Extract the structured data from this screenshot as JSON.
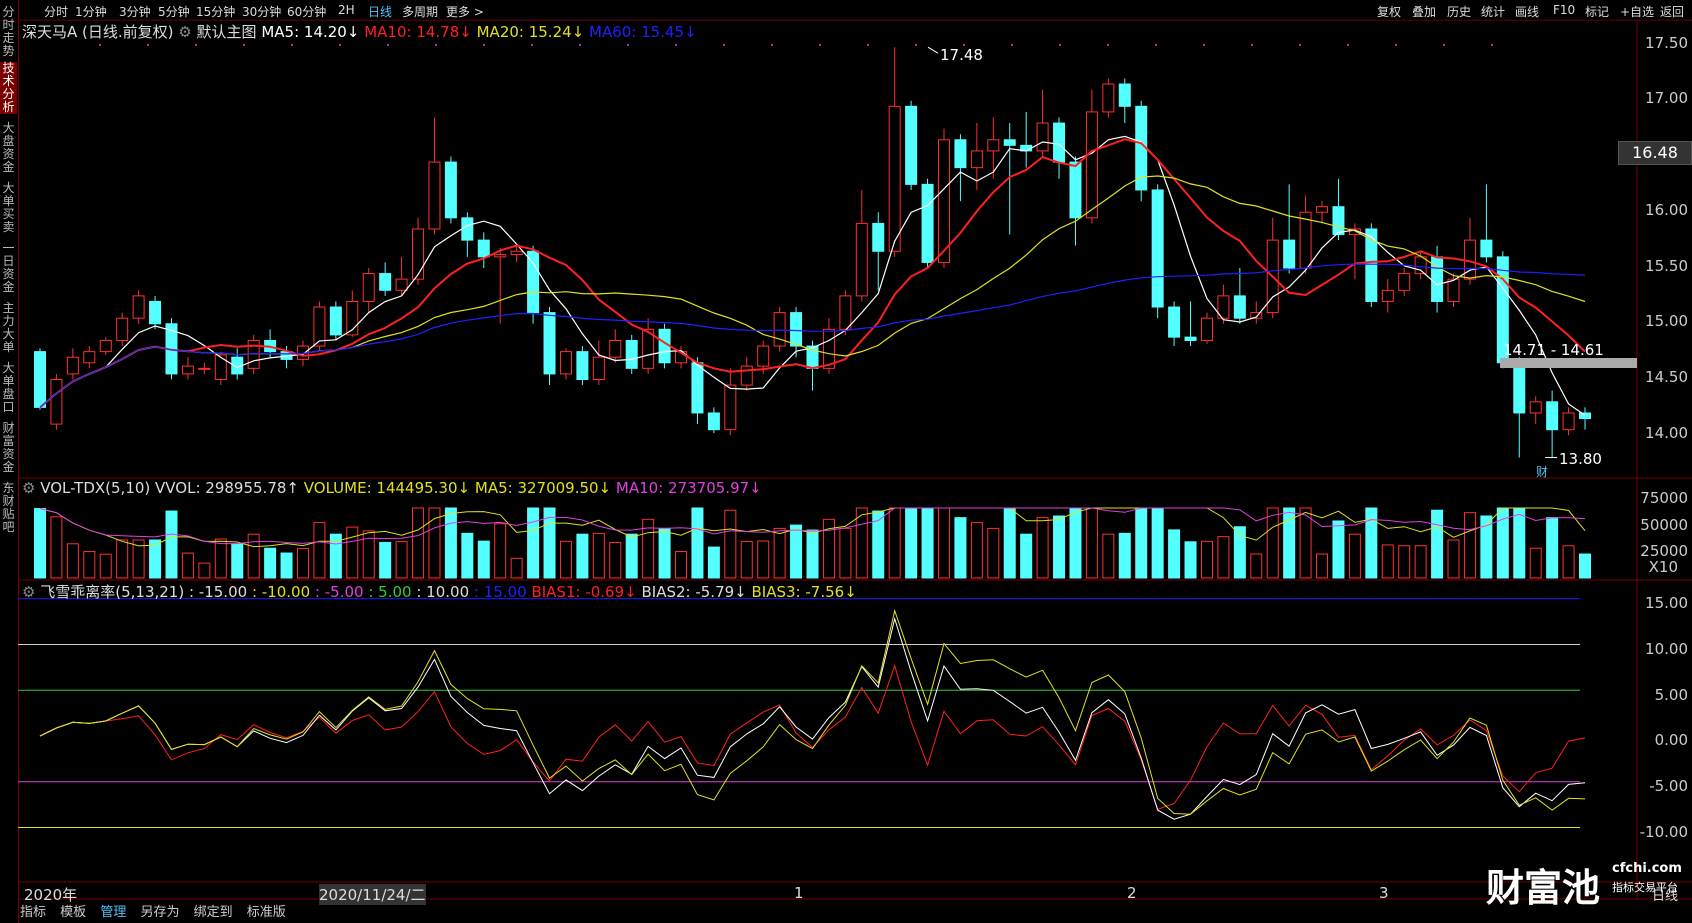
{
  "top_periods": [
    "分时",
    "1分钟",
    "3分钟",
    "5分钟",
    "15分钟",
    "30分钟",
    "60分钟",
    "2H",
    "日线",
    "多周期",
    "更多 >"
  ],
  "top_tools": [
    "复权",
    "叠加",
    "历史",
    "统计",
    "画线",
    "F10",
    "标记",
    "+自选",
    "返回"
  ],
  "side_tabs": [
    "分时走势",
    "技术分析",
    "大盘资金",
    "大单买卖",
    "一日资金",
    "主力大单",
    "大单盘口",
    "财富资金",
    "东财贴吧"
  ],
  "legend_main": {
    "name": "深天马A (日线.前复权)",
    "template": "默认主图",
    "ma5": "MA5: 14.20↓",
    "ma10": "MA10: 14.78↓",
    "ma20": "MA20: 15.24↓",
    "ma60": "MA60: 15.45↓"
  },
  "legend_vol": {
    "name": "VOL-TDX(5,10)",
    "vvol": "VVOL: 298955.78↑",
    "volume": "VOLUME: 144495.30↓",
    "ma5": "MA5: 327009.50↓",
    "ma10": "MA10: 273705.97↓"
  },
  "legend_bias": {
    "name": "飞雪乖离率(5,13,21)",
    "p1": ": -15.00",
    "p2": ": -10.00",
    "p3": ": -5.00",
    "p4": ": 5.00",
    "p5": ": 10.00",
    "p6": ": 15.00",
    "bias1": "BIAS1: -0.69↓",
    "bias2": "BIAS2: -5.79↓",
    "bias3": "BIAS3: -7.56↓"
  },
  "price_axis": [
    "17.50",
    "17.00",
    "16.48",
    "16.00",
    "15.50",
    "15.00",
    "14.50",
    "14.00"
  ],
  "current_price": "16.48",
  "vol_axis": [
    "75000",
    "50000",
    "25000",
    "X10"
  ],
  "bias_axis": [
    "15.00",
    "10.00",
    "5.00",
    "0.00",
    "-5.00",
    "-10.00"
  ],
  "annotations": {
    "high": "17.48",
    "low": "13.80",
    "range": "14.71 - 14.61",
    "cai": "财"
  },
  "x_labels": [
    "2020年",
    "2020/11/24/二",
    "1",
    "2",
    "3"
  ],
  "bottom_tabs": [
    "指标",
    "模板",
    "管理",
    "另存为",
    "绑定到",
    "标准版"
  ],
  "bottom_right": "日线",
  "logo": {
    "brand": "财富池",
    "site": "cfchi.com",
    "slogan": "指标交易平台"
  },
  "colors": {
    "up": "#ff3030",
    "down": "#54ffff",
    "ma5": "#ffffff",
    "ma10": "#ff2020",
    "ma20": "#e0e020",
    "ma60": "#2020ff"
  },
  "chart_data": {
    "type": "candlestick",
    "candles": [
      [
        14.75,
        14.25,
        14.78,
        14.23
      ],
      [
        14.1,
        14.5,
        14.55,
        14.05
      ],
      [
        14.55,
        14.7,
        14.78,
        14.5
      ],
      [
        14.65,
        14.75,
        14.8,
        14.6
      ],
      [
        14.75,
        14.85,
        14.88,
        14.72
      ],
      [
        14.85,
        15.05,
        15.1,
        14.8
      ],
      [
        15.05,
        15.25,
        15.3,
        15.0
      ],
      [
        15.2,
        15.0,
        15.25,
        14.95
      ],
      [
        15.0,
        14.55,
        15.05,
        14.5
      ],
      [
        14.55,
        14.62,
        14.7,
        14.5
      ],
      [
        14.6,
        14.6,
        14.65,
        14.55
      ],
      [
        14.5,
        14.72,
        14.75,
        14.45
      ],
      [
        14.7,
        14.55,
        14.78,
        14.5
      ],
      [
        14.6,
        14.85,
        14.9,
        14.55
      ],
      [
        14.85,
        14.75,
        14.95,
        14.7
      ],
      [
        14.75,
        14.68,
        14.8,
        14.6
      ],
      [
        14.68,
        14.8,
        14.85,
        14.62
      ],
      [
        14.8,
        15.15,
        15.2,
        14.75
      ],
      [
        15.15,
        14.9,
        15.2,
        14.85
      ],
      [
        14.9,
        15.2,
        15.3,
        14.88
      ],
      [
        15.2,
        15.45,
        15.5,
        15.1
      ],
      [
        15.45,
        15.3,
        15.55,
        15.25
      ],
      [
        15.3,
        15.4,
        15.6,
        15.25
      ],
      [
        15.4,
        15.85,
        15.95,
        15.35
      ],
      [
        15.85,
        16.45,
        16.85,
        15.8
      ],
      [
        16.45,
        15.95,
        16.5,
        15.9
      ],
      [
        15.95,
        15.75,
        16.0,
        15.6
      ],
      [
        15.75,
        15.6,
        15.82,
        15.5
      ],
      [
        15.6,
        15.62,
        15.68,
        15.0
      ],
      [
        15.62,
        15.65,
        15.7,
        15.55
      ],
      [
        15.65,
        15.1,
        15.7,
        15.0
      ],
      [
        15.1,
        14.55,
        15.15,
        14.45
      ],
      [
        14.55,
        14.75,
        14.78,
        14.5
      ],
      [
        14.75,
        14.5,
        14.8,
        14.45
      ],
      [
        14.5,
        14.7,
        14.85,
        14.45
      ],
      [
        14.7,
        14.85,
        14.95,
        14.65
      ],
      [
        14.85,
        14.6,
        14.9,
        14.55
      ],
      [
        14.6,
        14.95,
        15.05,
        14.55
      ],
      [
        14.95,
        14.65,
        15.0,
        14.6
      ],
      [
        14.65,
        14.75,
        14.8,
        14.6
      ],
      [
        14.65,
        14.2,
        14.7,
        14.1
      ],
      [
        14.2,
        14.05,
        14.25,
        14.02
      ],
      [
        14.05,
        14.45,
        14.6,
        14.0
      ],
      [
        14.45,
        14.62,
        14.7,
        14.4
      ],
      [
        14.62,
        14.8,
        14.85,
        14.55
      ],
      [
        14.8,
        15.1,
        15.15,
        14.75
      ],
      [
        15.1,
        14.8,
        15.15,
        14.7
      ],
      [
        14.8,
        14.6,
        14.85,
        14.4
      ],
      [
        14.6,
        14.95,
        15.05,
        14.55
      ],
      [
        14.95,
        15.25,
        15.3,
        14.9
      ],
      [
        15.25,
        15.9,
        16.2,
        15.2
      ],
      [
        15.9,
        15.65,
        16.0,
        15.3
      ],
      [
        15.65,
        16.95,
        17.48,
        15.6
      ],
      [
        16.95,
        16.25,
        17.0,
        16.2
      ],
      [
        16.25,
        15.55,
        16.3,
        15.5
      ],
      [
        15.55,
        16.65,
        16.75,
        15.5
      ],
      [
        16.65,
        16.4,
        16.7,
        16.1
      ],
      [
        16.4,
        16.55,
        16.8,
        16.2
      ],
      [
        16.55,
        16.65,
        16.85,
        16.3
      ],
      [
        16.65,
        16.6,
        16.8,
        15.8
      ],
      [
        16.6,
        16.55,
        16.9,
        16.4
      ],
      [
        16.55,
        16.8,
        17.1,
        16.5
      ],
      [
        16.8,
        16.45,
        16.85,
        16.3
      ],
      [
        16.45,
        15.95,
        16.5,
        15.7
      ],
      [
        15.95,
        16.9,
        17.1,
        15.9
      ],
      [
        16.9,
        17.15,
        17.2,
        16.85
      ],
      [
        17.15,
        16.95,
        17.2,
        16.8
      ],
      [
        16.95,
        16.2,
        17.0,
        16.1
      ],
      [
        16.2,
        15.15,
        16.25,
        15.05
      ],
      [
        15.15,
        14.88,
        15.2,
        14.8
      ],
      [
        14.88,
        14.85,
        15.2,
        14.8
      ],
      [
        14.85,
        15.05,
        15.1,
        14.82
      ],
      [
        15.05,
        15.25,
        15.35,
        15.0
      ],
      [
        15.25,
        15.05,
        15.5,
        15.0
      ],
      [
        15.05,
        15.1,
        15.2,
        15.0
      ],
      [
        15.1,
        15.75,
        15.95,
        15.05
      ],
      [
        15.75,
        15.5,
        16.25,
        15.45
      ],
      [
        15.5,
        16.0,
        16.15,
        15.45
      ],
      [
        16.0,
        16.05,
        16.1,
        15.9
      ],
      [
        16.05,
        15.8,
        16.3,
        15.75
      ],
      [
        15.8,
        15.85,
        15.9,
        15.4
      ],
      [
        15.85,
        15.2,
        15.9,
        15.15
      ],
      [
        15.2,
        15.3,
        15.4,
        15.1
      ],
      [
        15.3,
        15.45,
        15.5,
        15.25
      ],
      [
        15.45,
        15.6,
        15.65,
        15.4
      ],
      [
        15.6,
        15.2,
        15.7,
        15.1
      ],
      [
        15.2,
        15.4,
        15.45,
        15.15
      ],
      [
        15.4,
        15.75,
        15.95,
        15.35
      ],
      [
        15.75,
        15.6,
        16.25,
        15.55
      ],
      [
        15.6,
        14.65,
        15.65,
        14.6
      ],
      [
        14.65,
        14.2,
        14.7,
        13.8
      ],
      [
        14.2,
        14.3,
        14.35,
        14.1
      ],
      [
        14.3,
        14.05,
        14.4,
        13.8
      ],
      [
        14.05,
        14.2,
        14.25,
        14.0
      ],
      [
        14.2,
        14.15,
        14.25,
        14.05
      ]
    ]
  }
}
